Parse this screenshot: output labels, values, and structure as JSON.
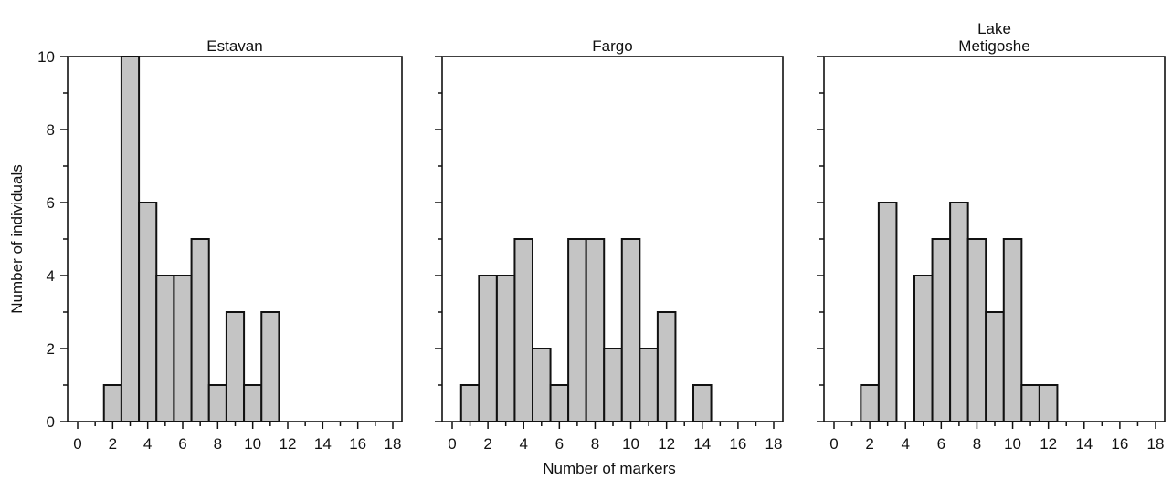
{
  "figure": {
    "ylabel": "Number of individuals",
    "xlabel": "Number of markers"
  },
  "chart_data": [
    {
      "type": "bar",
      "title": [
        "Estavan"
      ],
      "xlim": [
        0,
        18
      ],
      "ylim": [
        0,
        10
      ],
      "xticks": [
        0,
        2,
        4,
        6,
        8,
        10,
        12,
        14,
        16,
        18
      ],
      "yticks": [
        0,
        2,
        4,
        6,
        8,
        10
      ],
      "x": [
        0,
        1,
        2,
        3,
        4,
        5,
        6,
        7,
        8,
        9,
        10,
        11,
        12,
        13,
        14,
        15,
        16,
        17,
        18
      ],
      "values": [
        0,
        0,
        1,
        10,
        6,
        4,
        4,
        5,
        1,
        3,
        1,
        3,
        0,
        0,
        0,
        0,
        0,
        0,
        0
      ],
      "grid": false
    },
    {
      "type": "bar",
      "title": [
        "Fargo"
      ],
      "xlim": [
        0,
        18
      ],
      "ylim": [
        0,
        10
      ],
      "xticks": [
        0,
        2,
        4,
        6,
        8,
        10,
        12,
        14,
        16,
        18
      ],
      "yticks": [
        0,
        2,
        4,
        6,
        8,
        10
      ],
      "x": [
        0,
        1,
        2,
        3,
        4,
        5,
        6,
        7,
        8,
        9,
        10,
        11,
        12,
        13,
        14,
        15,
        16,
        17,
        18
      ],
      "values": [
        0,
        1,
        4,
        4,
        5,
        2,
        1,
        5,
        5,
        2,
        5,
        2,
        3,
        0,
        1,
        0,
        0,
        0,
        0
      ],
      "grid": false
    },
    {
      "type": "bar",
      "title": [
        "Lake",
        "Metigoshe"
      ],
      "xlim": [
        0,
        18
      ],
      "ylim": [
        0,
        10
      ],
      "xticks": [
        0,
        2,
        4,
        6,
        8,
        10,
        12,
        14,
        16,
        18
      ],
      "yticks": [
        0,
        2,
        4,
        6,
        8,
        10
      ],
      "x": [
        0,
        1,
        2,
        3,
        4,
        5,
        6,
        7,
        8,
        9,
        10,
        11,
        12,
        13,
        14,
        15,
        16,
        17,
        18
      ],
      "values": [
        0,
        0,
        1,
        6,
        0,
        4,
        5,
        6,
        5,
        3,
        5,
        1,
        1,
        0,
        0,
        0,
        0,
        0,
        0
      ],
      "grid": false
    }
  ]
}
